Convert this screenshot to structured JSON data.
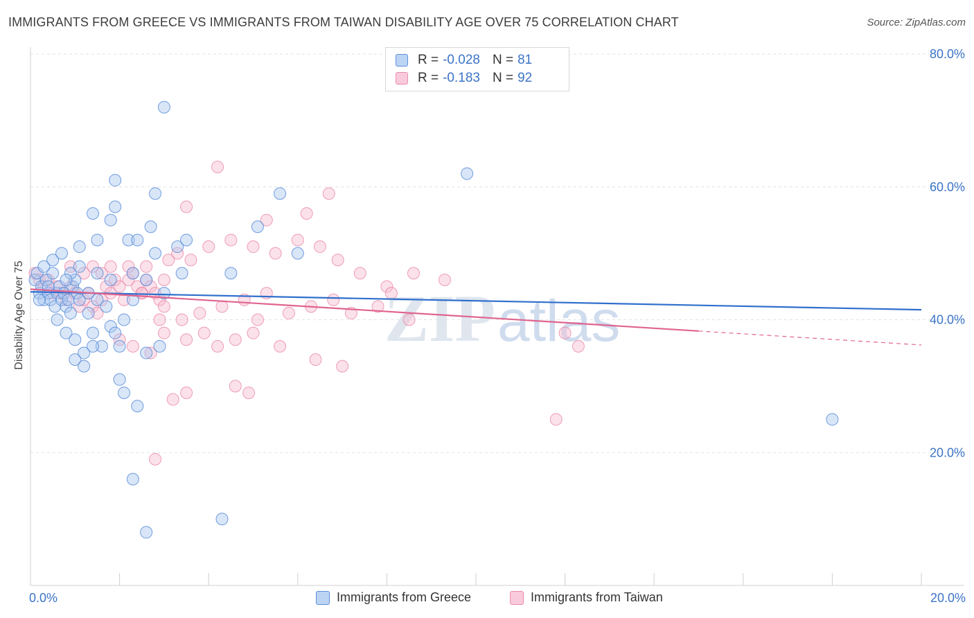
{
  "title": "IMMIGRANTS FROM GREECE VS IMMIGRANTS FROM TAIWAN DISABILITY AGE OVER 75 CORRELATION CHART",
  "source": "Source: ZipAtlas.com",
  "watermark": {
    "zip": "ZIP",
    "atlas": "atlas"
  },
  "legend": {
    "greece": {
      "r_label": "R =",
      "r_value": "-0.028",
      "n_label": "N =",
      "n_value": "81"
    },
    "taiwan": {
      "r_label": "R =",
      "r_value": "-0.183",
      "n_label": "N =",
      "n_value": "92"
    }
  },
  "colors": {
    "greece_fill": "#aac8f0",
    "greece_stroke": "#4f86d6",
    "greece_line": "#2f6fcc",
    "taiwan_fill": "#f7bcd0",
    "taiwan_stroke": "#e87fa3",
    "taiwan_line": "#e0648f",
    "tick_label": "#3b74c7",
    "grid": "#e2e2e2"
  },
  "chart_data": {
    "type": "scatter",
    "title": "IMMIGRANTS FROM GREECE VS IMMIGRANTS FROM TAIWAN DISABILITY AGE OVER 75 CORRELATION CHART",
    "xlabel": "",
    "ylabel": "Disability Age Over 75",
    "xlim": [
      0,
      20
    ],
    "ylim": [
      0,
      80
    ],
    "x_ticks": [
      "0.0%",
      "20.0%"
    ],
    "y_ticks": [
      "20.0%",
      "40.0%",
      "60.0%",
      "80.0%"
    ],
    "grid": true,
    "legend_position": "top-center",
    "series": [
      {
        "name": "Immigrants from Greece",
        "trend": {
          "x": [
            0,
            20
          ],
          "y": [
            44.2,
            41.5
          ]
        },
        "points": [
          [
            0.1,
            46
          ],
          [
            0.15,
            47
          ],
          [
            0.2,
            44
          ],
          [
            0.25,
            45
          ],
          [
            0.3,
            43
          ],
          [
            0.35,
            46
          ],
          [
            0.4,
            44
          ],
          [
            0.45,
            43
          ],
          [
            0.5,
            47
          ],
          [
            0.55,
            42
          ],
          [
            0.6,
            44
          ],
          [
            0.65,
            45
          ],
          [
            0.7,
            43
          ],
          [
            0.75,
            44
          ],
          [
            0.8,
            42
          ],
          [
            0.85,
            43
          ],
          [
            0.9,
            41
          ],
          [
            0.95,
            45
          ],
          [
            1.0,
            46
          ],
          [
            1.05,
            44
          ],
          [
            1.1,
            43
          ],
          [
            0.3,
            48
          ],
          [
            0.5,
            49
          ],
          [
            0.7,
            50
          ],
          [
            0.9,
            47
          ],
          [
            1.1,
            48
          ],
          [
            0.6,
            40
          ],
          [
            0.8,
            38
          ],
          [
            1.0,
            37
          ],
          [
            1.2,
            35
          ],
          [
            1.4,
            38
          ],
          [
            1.6,
            36
          ],
          [
            1.8,
            39
          ],
          [
            1.3,
            41
          ],
          [
            1.5,
            43
          ],
          [
            1.7,
            42
          ],
          [
            1.9,
            38
          ],
          [
            2.1,
            40
          ],
          [
            2.3,
            43
          ],
          [
            1.0,
            34
          ],
          [
            1.2,
            33
          ],
          [
            1.4,
            36
          ],
          [
            2.0,
            36
          ],
          [
            2.6,
            35
          ],
          [
            2.9,
            36
          ],
          [
            1.1,
            51
          ],
          [
            1.5,
            52
          ],
          [
            2.2,
            52
          ],
          [
            2.4,
            52
          ],
          [
            2.8,
            50
          ],
          [
            3.3,
            51
          ],
          [
            3.5,
            52
          ],
          [
            1.4,
            56
          ],
          [
            1.8,
            55
          ],
          [
            2.7,
            54
          ],
          [
            5.1,
            54
          ],
          [
            1.9,
            57
          ],
          [
            2.8,
            59
          ],
          [
            5.6,
            59
          ],
          [
            1.9,
            61
          ],
          [
            3.0,
            72
          ],
          [
            9.8,
            62
          ],
          [
            1.5,
            47
          ],
          [
            2.3,
            47
          ],
          [
            3.4,
            47
          ],
          [
            4.5,
            47
          ],
          [
            6.0,
            50
          ],
          [
            1.3,
            44
          ],
          [
            1.8,
            46
          ],
          [
            2.6,
            46
          ],
          [
            3.0,
            44
          ],
          [
            2.0,
            31
          ],
          [
            2.1,
            29
          ],
          [
            2.4,
            27
          ],
          [
            2.3,
            16
          ],
          [
            2.6,
            8
          ],
          [
            4.3,
            10
          ],
          [
            18.0,
            25
          ],
          [
            0.2,
            43
          ],
          [
            0.4,
            45
          ],
          [
            0.8,
            46
          ]
        ]
      },
      {
        "name": "Immigrants from Taiwan",
        "trend": {
          "x": [
            0,
            15
          ],
          "y": [
            44.6,
            38.3
          ]
        },
        "trend_dashed": {
          "x": [
            15,
            20
          ],
          "y": [
            38.3,
            36.2
          ]
        },
        "points": [
          [
            0.1,
            47
          ],
          [
            0.2,
            46
          ],
          [
            0.3,
            45
          ],
          [
            0.4,
            46
          ],
          [
            0.5,
            44
          ],
          [
            0.6,
            45
          ],
          [
            0.7,
            44
          ],
          [
            0.8,
            43
          ],
          [
            0.9,
            45
          ],
          [
            1.0,
            44
          ],
          [
            1.1,
            42
          ],
          [
            1.2,
            43
          ],
          [
            1.3,
            44
          ],
          [
            1.4,
            42
          ],
          [
            1.5,
            41
          ],
          [
            1.6,
            43
          ],
          [
            1.7,
            45
          ],
          [
            1.8,
            44
          ],
          [
            1.9,
            46
          ],
          [
            2.0,
            45
          ],
          [
            2.1,
            43
          ],
          [
            2.2,
            46
          ],
          [
            2.3,
            47
          ],
          [
            2.4,
            45
          ],
          [
            2.5,
            44
          ],
          [
            2.6,
            46
          ],
          [
            2.7,
            45
          ],
          [
            2.8,
            44
          ],
          [
            2.9,
            43
          ],
          [
            3.0,
            46
          ],
          [
            1.4,
            48
          ],
          [
            1.6,
            47
          ],
          [
            1.8,
            48
          ],
          [
            2.2,
            48
          ],
          [
            2.6,
            48
          ],
          [
            3.1,
            49
          ],
          [
            3.3,
            50
          ],
          [
            3.6,
            49
          ],
          [
            4.0,
            51
          ],
          [
            4.5,
            52
          ],
          [
            5.0,
            51
          ],
          [
            5.5,
            50
          ],
          [
            6.0,
            52
          ],
          [
            6.5,
            51
          ],
          [
            6.9,
            49
          ],
          [
            7.4,
            47
          ],
          [
            8.0,
            45
          ],
          [
            8.6,
            47
          ],
          [
            3.0,
            42
          ],
          [
            3.4,
            40
          ],
          [
            3.8,
            41
          ],
          [
            4.3,
            42
          ],
          [
            4.8,
            43
          ],
          [
            5.3,
            44
          ],
          [
            5.8,
            41
          ],
          [
            6.3,
            42
          ],
          [
            6.8,
            43
          ],
          [
            7.2,
            41
          ],
          [
            8.1,
            44
          ],
          [
            9.3,
            46
          ],
          [
            2.0,
            37
          ],
          [
            2.3,
            36
          ],
          [
            2.7,
            35
          ],
          [
            3.0,
            38
          ],
          [
            3.5,
            37
          ],
          [
            3.9,
            38
          ],
          [
            4.2,
            36
          ],
          [
            4.6,
            37
          ],
          [
            5.0,
            38
          ],
          [
            5.6,
            36
          ],
          [
            6.4,
            34
          ],
          [
            7.0,
            33
          ],
          [
            3.5,
            29
          ],
          [
            3.2,
            28
          ],
          [
            4.6,
            30
          ],
          [
            4.9,
            29
          ],
          [
            4.2,
            63
          ],
          [
            3.5,
            57
          ],
          [
            6.7,
            59
          ],
          [
            5.3,
            55
          ],
          [
            6.2,
            56
          ],
          [
            2.8,
            19
          ],
          [
            11.8,
            25
          ],
          [
            12.0,
            38
          ],
          [
            12.3,
            36
          ],
          [
            8.5,
            40
          ],
          [
            7.8,
            42
          ],
          [
            5.1,
            40
          ],
          [
            2.9,
            40
          ],
          [
            2.5,
            44
          ],
          [
            1.2,
            47
          ],
          [
            0.9,
            48
          ]
        ]
      }
    ]
  },
  "bottom_legend": {
    "greece": "Immigrants from Greece",
    "taiwan": "Immigrants from Taiwan"
  },
  "x_tick_left": "0.0%",
  "x_tick_right": "20.0%"
}
